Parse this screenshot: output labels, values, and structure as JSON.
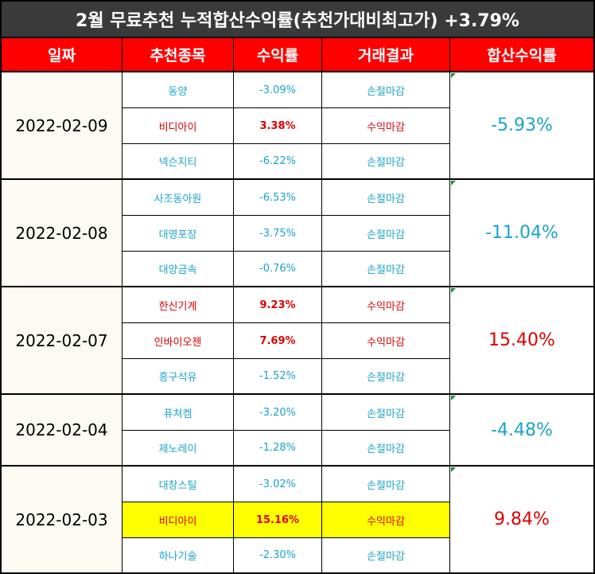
{
  "title": "2월 무료추천 누적합산수익률(추천가대비최고가) +3.79%",
  "headers": {
    "date": "일짜",
    "stock": "추천종목",
    "return": "수익률",
    "result": "거래결과",
    "total": "합산수익률"
  },
  "colors": {
    "loss": "#1aa3c9",
    "gain": "#e00000",
    "highlight": "#ffff00",
    "header_bg": "#ff0000",
    "title_bg": "#3a3a3a"
  },
  "groups": [
    {
      "date": "2022-02-09",
      "total": "-5.93%",
      "total_color": "cyan",
      "rows": [
        {
          "stock": "동양",
          "return": "-3.09%",
          "result": "손절마감",
          "color": "cyan"
        },
        {
          "stock": "비디아이",
          "return": "3.38%",
          "result": "수익마감",
          "color": "red"
        },
        {
          "stock": "넥슨지티",
          "return": "-6.22%",
          "result": "손절마감",
          "color": "cyan"
        }
      ]
    },
    {
      "date": "2022-02-08",
      "total": "-11.04%",
      "total_color": "cyan",
      "rows": [
        {
          "stock": "사조동아원",
          "return": "-6.53%",
          "result": "손절마감",
          "color": "cyan"
        },
        {
          "stock": "대영포장",
          "return": "-3.75%",
          "result": "손절마감",
          "color": "cyan"
        },
        {
          "stock": "대양금속",
          "return": "-0.76%",
          "result": "손절마감",
          "color": "cyan"
        }
      ]
    },
    {
      "date": "2022-02-07",
      "total": "15.40%",
      "total_color": "red",
      "rows": [
        {
          "stock": "한신기계",
          "return": "9.23%",
          "result": "수익마감",
          "color": "red"
        },
        {
          "stock": "인바이오젠",
          "return": "7.69%",
          "result": "수익마감",
          "color": "red"
        },
        {
          "stock": "흥구석유",
          "return": "-1.52%",
          "result": "손절마감",
          "color": "cyan"
        }
      ]
    },
    {
      "date": "2022-02-04",
      "total": "-4.48%",
      "total_color": "cyan",
      "rows": [
        {
          "stock": "퓨쳐켐",
          "return": "-3.20%",
          "result": "손절마감",
          "color": "cyan"
        },
        {
          "stock": "제노레이",
          "return": "-1.28%",
          "result": "손절마감",
          "color": "cyan"
        }
      ]
    },
    {
      "date": "2022-02-03",
      "total": "9.84%",
      "total_color": "red",
      "rows": [
        {
          "stock": "대창스틸",
          "return": "-3.02%",
          "result": "손절마감",
          "color": "cyan"
        },
        {
          "stock": "비디아이",
          "return": "15.16%",
          "result": "수익마감",
          "color": "red",
          "highlight": true
        },
        {
          "stock": "하나기술",
          "return": "-2.30%",
          "result": "손절마감",
          "color": "cyan"
        }
      ]
    }
  ]
}
